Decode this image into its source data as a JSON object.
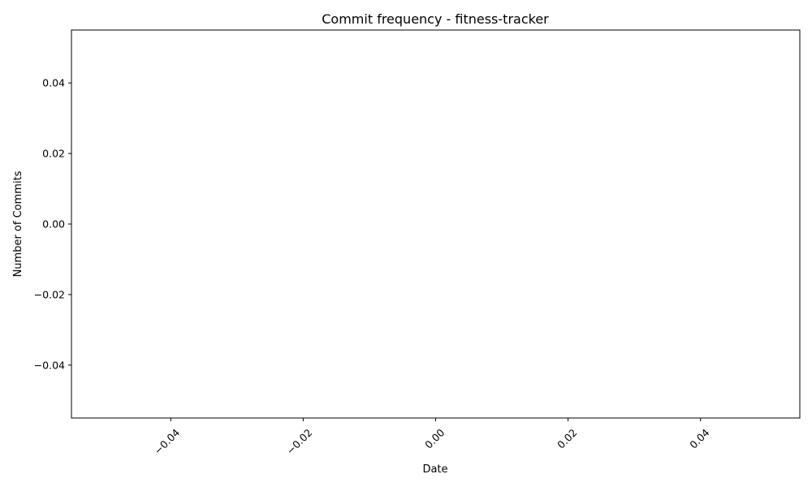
{
  "chart_data": {
    "type": "line",
    "title": "Commit frequency - fitness-tracker",
    "xlabel": "Date",
    "ylabel": "Number of Commits",
    "x_ticks": [
      "−0.04",
      "−0.02",
      "0.00",
      "0.02",
      "0.04"
    ],
    "y_ticks": [
      "0.04",
      "0.02",
      "0.00",
      "−0.02",
      "−0.04"
    ],
    "xlim": [
      -0.055,
      0.055
    ],
    "ylim": [
      -0.055,
      0.055
    ],
    "x_tick_rotation_deg": 45,
    "series": [
      {
        "x": [],
        "y": []
      }
    ],
    "grid": false,
    "legend": "none"
  }
}
